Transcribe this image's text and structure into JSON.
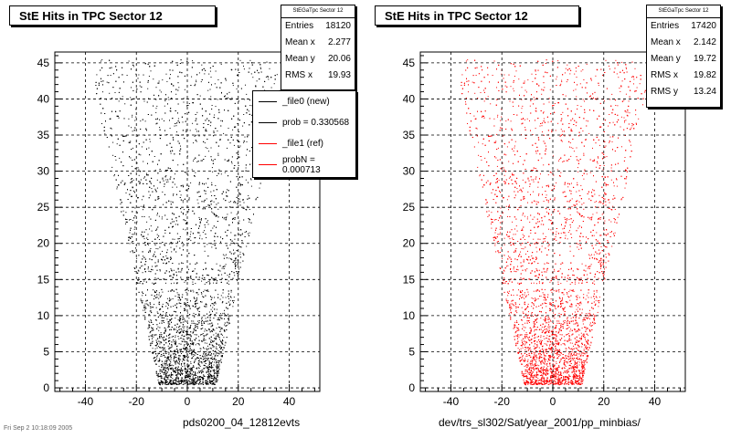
{
  "footer": "Fri Sep 2 10:18:09 2005",
  "panels": [
    {
      "title": "StE Hits in TPC Sector 12",
      "xtitle": "pds0200_04_12812evts",
      "color": "#000000",
      "stats": {
        "header": "StEGaTpc Sector 12",
        "rows": [
          {
            "label": "Entries",
            "value": "18120"
          },
          {
            "label": "Mean x",
            "value": "2.277"
          },
          {
            "label": "Mean y",
            "value": "20.06"
          },
          {
            "label": "RMS x",
            "value": "19.93"
          }
        ]
      },
      "legend": [
        {
          "label": "_file0 (new)",
          "color": "#000000"
        },
        {
          "label": "prob = 0.330568",
          "color": "#000000"
        },
        {
          "label": "_file1 (ref)",
          "color": "#ff0000"
        },
        {
          "label": "probN = 0.000713",
          "color": "#ff0000"
        }
      ]
    },
    {
      "title": "StE Hits in TPC Sector 12",
      "xtitle": "dev/trs_sl302/Sat/year_2001/pp_minbias/",
      "color": "#ff0000",
      "stats": {
        "header": "StEGaTpc Sector 12",
        "rows": [
          {
            "label": "Entries",
            "value": "17420"
          },
          {
            "label": "Mean x",
            "value": "2.142"
          },
          {
            "label": "Mean y",
            "value": "19.72"
          },
          {
            "label": "RMS x",
            "value": "19.82"
          },
          {
            "label": "RMS y",
            "value": "13.24"
          }
        ]
      }
    }
  ],
  "chart_data": [
    {
      "type": "scatter",
      "title": "StE Hits in TPC Sector 12",
      "xlabel": "pds0200_04_12812evts",
      "ylabel": "",
      "xlim": [
        -52,
        52
      ],
      "ylim": [
        -0.5,
        46.5
      ],
      "xticks": [
        -40,
        -20,
        0,
        20,
        40
      ],
      "yticks": [
        0,
        5,
        10,
        15,
        20,
        25,
        30,
        35,
        40,
        45
      ],
      "grid": true,
      "series": [
        {
          "name": "_file0 (new)",
          "color": "#000000",
          "entries": 18120
        }
      ]
    },
    {
      "type": "scatter",
      "title": "StE Hits in TPC Sector 12",
      "xlabel": "dev/trs_sl302/Sat/year_2001/pp_minbias/",
      "ylabel": "",
      "xlim": [
        -52,
        52
      ],
      "ylim": [
        -0.5,
        46.5
      ],
      "xticks": [
        -40,
        -20,
        0,
        20,
        40
      ],
      "yticks": [
        0,
        5,
        10,
        15,
        20,
        25,
        30,
        35,
        40,
        45
      ],
      "grid": true,
      "series": [
        {
          "name": "_file1 (ref)",
          "color": "#ff0000",
          "entries": 17420
        }
      ]
    }
  ]
}
